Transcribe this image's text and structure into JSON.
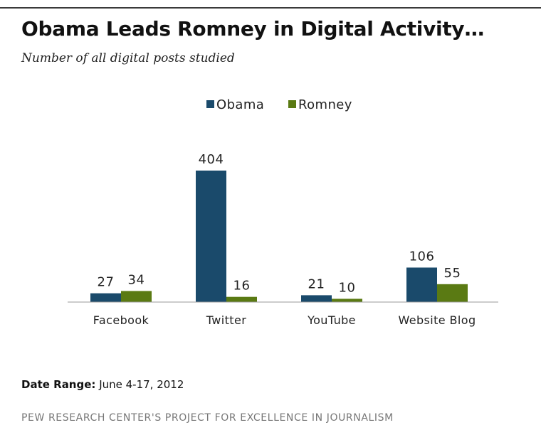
{
  "header": {
    "title": "Obama Leads Romney in Digital Activity…",
    "subtitle": "Number of all digital posts studied"
  },
  "footer": {
    "date_range_label": "Date Range:",
    "date_range_value": "June 4-17, 2012",
    "source": "PEW RESEARCH CENTER'S PROJECT FOR EXCELLENCE IN JOURNALISM"
  },
  "chart_data": {
    "type": "bar",
    "title": "Obama Leads Romney in Digital Activity…",
    "subtitle": "Number of all digital posts studied",
    "categories": [
      "Facebook",
      "Twitter",
      "YouTube",
      "Website Blog"
    ],
    "series": [
      {
        "name": "Obama",
        "values": [
          27,
          404,
          21,
          106
        ],
        "color": "#1a4a6b"
      },
      {
        "name": "Romney",
        "values": [
          34,
          16,
          10,
          55
        ],
        "color": "#5a7a13"
      }
    ],
    "ylim": [
      0,
      404
    ],
    "legend": "top-center",
    "grid": false,
    "data_labels": true
  }
}
